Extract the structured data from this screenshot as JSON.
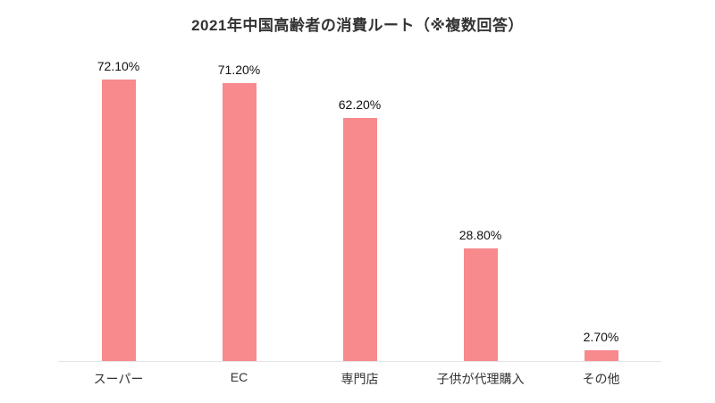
{
  "title": "2021年中国高齢者の消費ルート（※複数回答）",
  "colors": {
    "bar": "#f8898d",
    "baseline": "#e4e4e4",
    "title_text": "#333333",
    "value_text": "#111111",
    "category_text": "#333333",
    "background": "#ffffff"
  },
  "chart_data": {
    "type": "bar",
    "title": "2021年中国高齢者の消費ルート（※複数回答）",
    "categories": [
      "スーパー",
      "EC",
      "専門店",
      "子供が代理購入",
      "その他"
    ],
    "values": [
      72.1,
      71.2,
      62.2,
      28.8,
      2.7
    ],
    "value_labels": [
      "72.10%",
      "71.20%",
      "62.20%",
      "28.80%",
      "2.70%"
    ],
    "xlabel": "",
    "ylabel": "",
    "ylim": [
      0,
      80
    ],
    "grid": false,
    "legend": "none",
    "bar_color": "#f8898d"
  }
}
